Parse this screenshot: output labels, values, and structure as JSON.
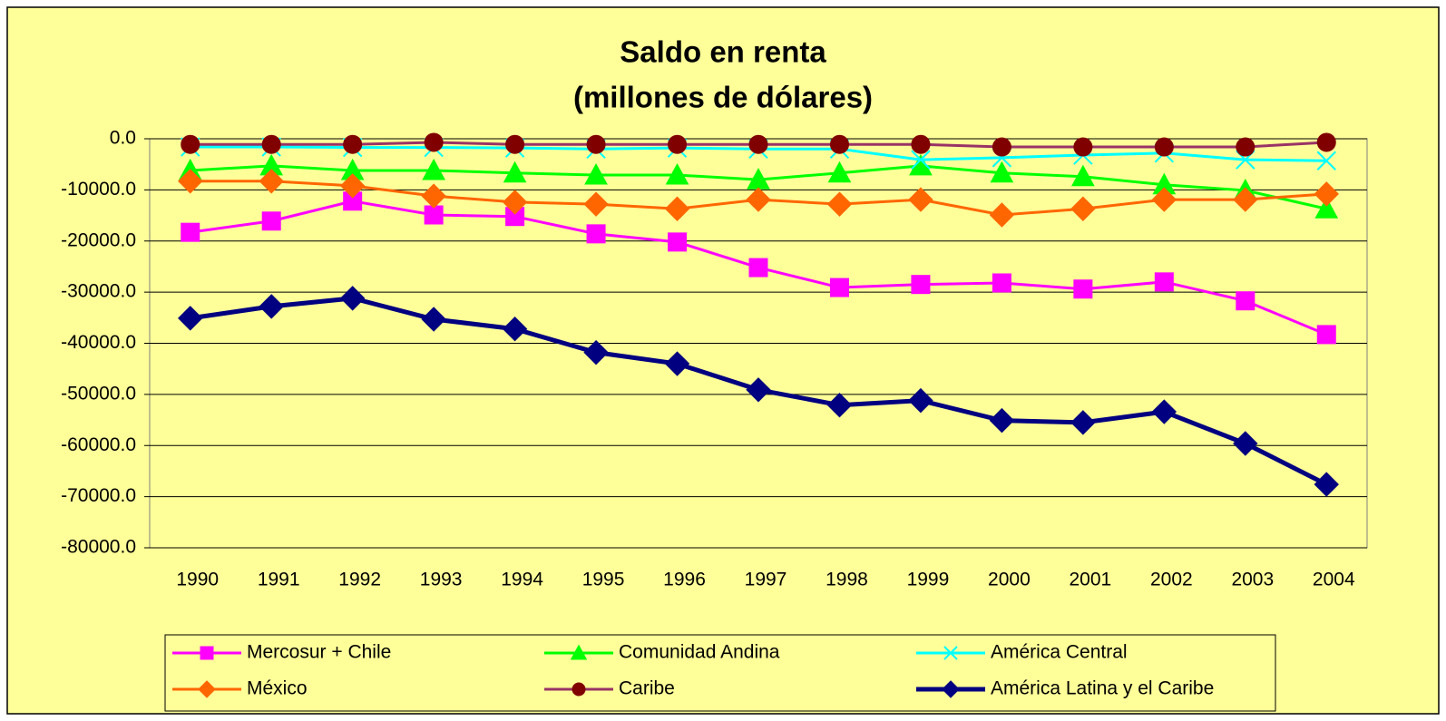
{
  "chart_data": {
    "type": "line",
    "title": "Saldo en renta",
    "subtitle": "(millones de dólares)",
    "categories": [
      "1990",
      "1991",
      "1992",
      "1993",
      "1994",
      "1995",
      "1996",
      "1997",
      "1998",
      "1999",
      "2000",
      "2001",
      "2002",
      "2003",
      "2004"
    ],
    "ylim": [
      -80000,
      0
    ],
    "yticks": [
      {
        "value": 0,
        "label": "0.0"
      },
      {
        "value": -10000,
        "label": "-10000.0"
      },
      {
        "value": -20000,
        "label": "-20000.0"
      },
      {
        "value": -30000,
        "label": "-30000.0"
      },
      {
        "value": -40000,
        "label": "-40000.0"
      },
      {
        "value": -50000,
        "label": "-50000.0"
      },
      {
        "value": -60000,
        "label": "-60000.0"
      },
      {
        "value": -70000,
        "label": "-70000.0"
      },
      {
        "value": -80000,
        "label": "-80000.0"
      }
    ],
    "grid": true,
    "legend": "bottom",
    "series": [
      {
        "name": "Mercosur + Chile",
        "color": "#FF00FF",
        "marker": "square",
        "values": [
          -18300,
          -16100,
          -12200,
          -14900,
          -15200,
          -18600,
          -20200,
          -25200,
          -29100,
          -28500,
          -28200,
          -29400,
          -28000,
          -31700,
          -38300
        ]
      },
      {
        "name": "Comunidad Andina",
        "color": "#00FF00",
        "marker": "triangle",
        "values": [
          -6200,
          -5300,
          -6200,
          -6200,
          -6700,
          -7100,
          -7100,
          -8000,
          -6700,
          -5300,
          -6700,
          -7400,
          -9000,
          -10100,
          -13700
        ]
      },
      {
        "name": "América Central",
        "color": "#00FFFF",
        "marker": "x",
        "values": [
          -1600,
          -1600,
          -1700,
          -1700,
          -1800,
          -2000,
          -1800,
          -2000,
          -2000,
          -4100,
          -3700,
          -3200,
          -2800,
          -4100,
          -4300
        ]
      },
      {
        "name": "México",
        "color": "#FF6600",
        "marker": "diamond",
        "values": [
          -8300,
          -8300,
          -9200,
          -11200,
          -12400,
          -12800,
          -13700,
          -11900,
          -12800,
          -11900,
          -14900,
          -13700,
          -11900,
          -11900,
          -10800
        ]
      },
      {
        "name": "Caribe",
        "color": "#993366",
        "marker_color": "#800000",
        "marker": "circle",
        "values": [
          -1100,
          -1100,
          -1100,
          -700,
          -1100,
          -1100,
          -1100,
          -1100,
          -1100,
          -1100,
          -1600,
          -1600,
          -1600,
          -1600,
          -700
        ]
      },
      {
        "name": "América Latina y el Caribe",
        "color": "#000080",
        "marker": "diamond",
        "values": [
          -35100,
          -32800,
          -31200,
          -35300,
          -37200,
          -41800,
          -44000,
          -49100,
          -52100,
          -51200,
          -55100,
          -55500,
          -53400,
          -59600,
          -67600
        ]
      }
    ]
  }
}
